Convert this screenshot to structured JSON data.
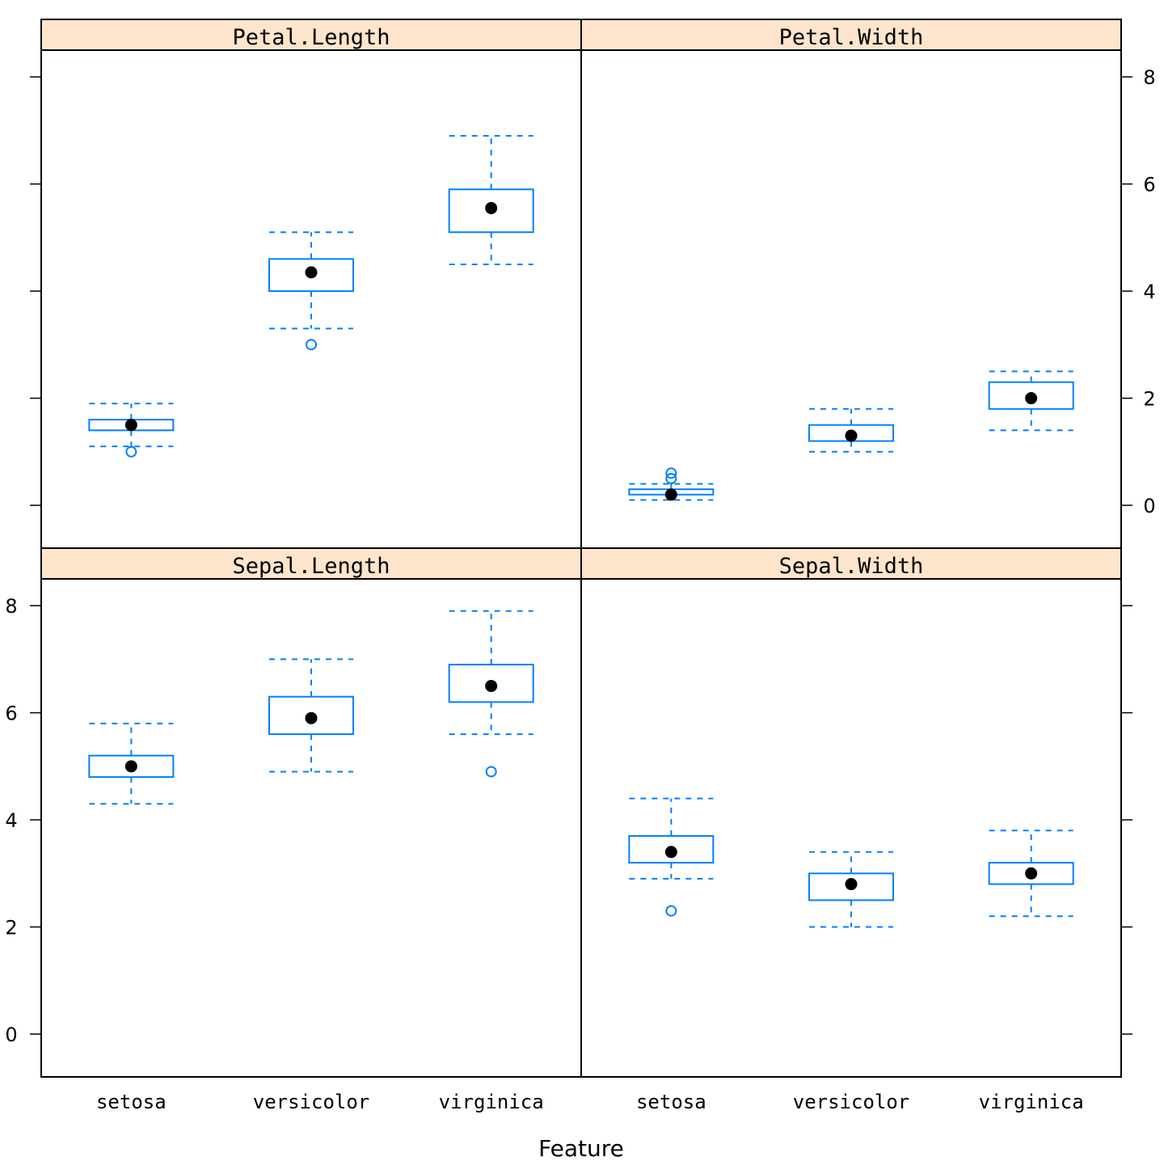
{
  "chart_data": {
    "type": "box",
    "xlabel": "Feature",
    "ylim": [
      -0.8,
      8.5
    ],
    "yticks": [
      0,
      2,
      4,
      6,
      8
    ],
    "categories": [
      "setosa",
      "versicolor",
      "virginica"
    ],
    "panels": [
      {
        "name": "Petal.Length",
        "boxes": [
          {
            "category": "setosa",
            "whisker_low": 1.1,
            "q1": 1.4,
            "median": 1.5,
            "q3": 1.6,
            "whisker_high": 1.9,
            "outliers": [
              1.0
            ]
          },
          {
            "category": "versicolor",
            "whisker_low": 3.3,
            "q1": 4.0,
            "median": 4.35,
            "q3": 4.6,
            "whisker_high": 5.1,
            "outliers": [
              3.0
            ]
          },
          {
            "category": "virginica",
            "whisker_low": 4.5,
            "q1": 5.1,
            "median": 5.55,
            "q3": 5.9,
            "whisker_high": 6.9,
            "outliers": []
          }
        ]
      },
      {
        "name": "Petal.Width",
        "boxes": [
          {
            "category": "setosa",
            "whisker_low": 0.1,
            "q1": 0.2,
            "median": 0.2,
            "q3": 0.3,
            "whisker_high": 0.4,
            "outliers": [
              0.5,
              0.6
            ]
          },
          {
            "category": "versicolor",
            "whisker_low": 1.0,
            "q1": 1.2,
            "median": 1.3,
            "q3": 1.5,
            "whisker_high": 1.8,
            "outliers": []
          },
          {
            "category": "virginica",
            "whisker_low": 1.4,
            "q1": 1.8,
            "median": 2.0,
            "q3": 2.3,
            "whisker_high": 2.5,
            "outliers": []
          }
        ]
      },
      {
        "name": "Sepal.Length",
        "boxes": [
          {
            "category": "setosa",
            "whisker_low": 4.3,
            "q1": 4.8,
            "median": 5.0,
            "q3": 5.2,
            "whisker_high": 5.8,
            "outliers": []
          },
          {
            "category": "versicolor",
            "whisker_low": 4.9,
            "q1": 5.6,
            "median": 5.9,
            "q3": 6.3,
            "whisker_high": 7.0,
            "outliers": []
          },
          {
            "category": "virginica",
            "whisker_low": 5.6,
            "q1": 6.2,
            "median": 6.5,
            "q3": 6.9,
            "whisker_high": 7.9,
            "outliers": [
              4.9
            ]
          }
        ]
      },
      {
        "name": "Sepal.Width",
        "boxes": [
          {
            "category": "setosa",
            "whisker_low": 2.9,
            "q1": 3.2,
            "median": 3.4,
            "q3": 3.7,
            "whisker_high": 4.4,
            "outliers": [
              2.3
            ]
          },
          {
            "category": "versicolor",
            "whisker_low": 2.0,
            "q1": 2.5,
            "median": 2.8,
            "q3": 3.0,
            "whisker_high": 3.4,
            "outliers": []
          },
          {
            "category": "virginica",
            "whisker_low": 2.2,
            "q1": 2.8,
            "median": 3.0,
            "q3": 3.2,
            "whisker_high": 3.8,
            "outliers": []
          }
        ]
      }
    ],
    "colors": {
      "box": "#0080ff",
      "strip": "#ffe5cc",
      "median": "#000000"
    }
  }
}
